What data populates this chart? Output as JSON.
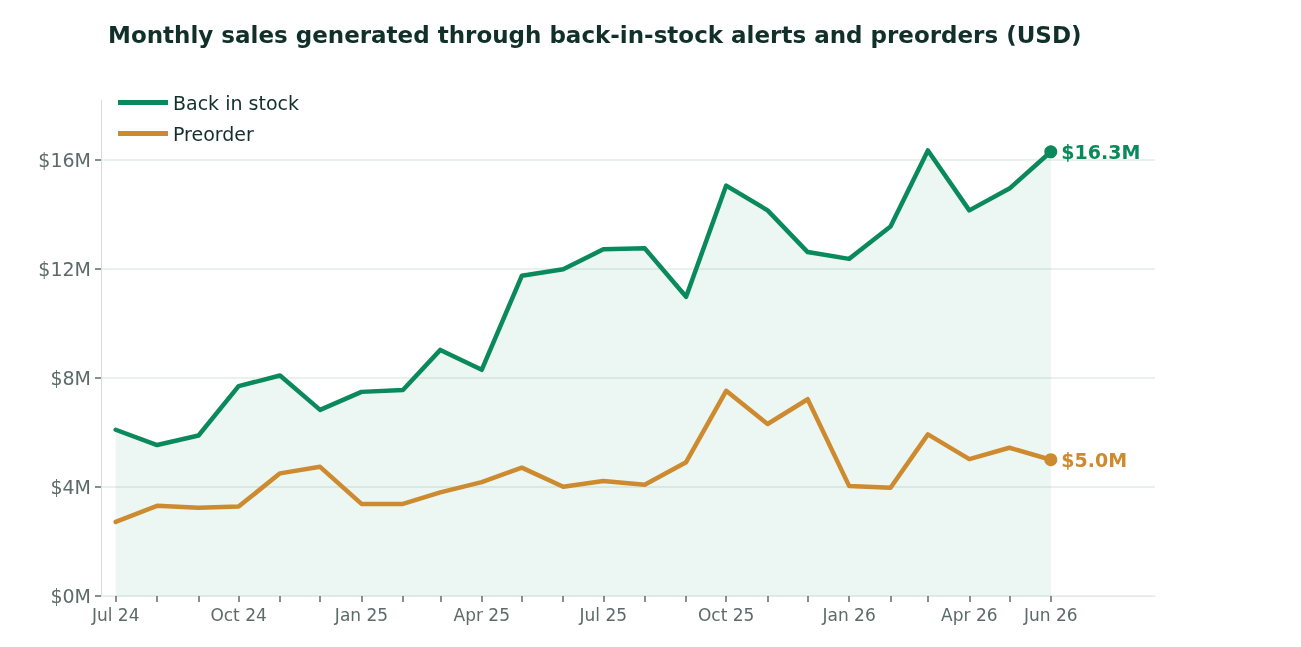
{
  "chart_data": {
    "type": "line",
    "title": "Monthly sales generated through back-in-stock alerts and preorders (USD)",
    "x": [
      "2024-07",
      "2024-08",
      "2024-09",
      "2024-10",
      "2024-11",
      "2024-12",
      "2025-01",
      "2025-02",
      "2025-03",
      "2025-04",
      "2025-05",
      "2025-06",
      "2025-07",
      "2025-08",
      "2025-09",
      "2025-10",
      "2025-11",
      "2025-12",
      "2026-01",
      "2026-02",
      "2026-03",
      "2026-04",
      "2026-05",
      "2026-06"
    ],
    "series": [
      {
        "name": "Back in stock",
        "type": "area",
        "color": "#0a8a5c",
        "values": [
          6.1,
          5.54,
          5.89,
          7.7,
          8.09,
          6.83,
          7.49,
          7.56,
          9.03,
          8.3,
          11.75,
          11.99,
          12.72,
          12.76,
          10.98,
          15.06,
          14.15,
          12.62,
          12.37,
          13.56,
          16.35,
          14.15,
          14.95,
          16.3
        ],
        "value_labels": [
          null,
          null,
          null,
          null,
          null,
          null,
          null,
          null,
          null,
          null,
          null,
          null,
          null,
          null,
          null,
          null,
          null,
          null,
          null,
          null,
          null,
          null,
          null,
          "$16.3M"
        ]
      },
      {
        "name": "Preorder",
        "color": "#cd8a2e",
        "values": [
          2.72,
          3.31,
          3.24,
          3.28,
          4.5,
          4.74,
          3.38,
          3.38,
          3.8,
          4.18,
          4.71,
          4.01,
          4.22,
          4.08,
          4.91,
          7.53,
          6.31,
          7.22,
          4.04,
          3.97,
          5.93,
          5.02,
          5.44,
          5.0
        ],
        "value_labels": [
          null,
          null,
          null,
          null,
          null,
          null,
          null,
          null,
          null,
          null,
          null,
          null,
          null,
          null,
          null,
          null,
          null,
          null,
          null,
          null,
          null,
          null,
          null,
          "$5.0M"
        ]
      }
    ],
    "ylim": [
      0,
      18.2
    ],
    "yticks": [
      {
        "value": 0,
        "label": "$0M"
      },
      {
        "value": 4,
        "label": "$4M"
      },
      {
        "value": 8,
        "label": "$8M"
      },
      {
        "value": 12,
        "label": "$12M"
      },
      {
        "value": 16,
        "label": "$16M"
      }
    ],
    "xlim": [
      "2024-06-20",
      "2026-08-18"
    ],
    "xticks": [
      {
        "value": "2024-07",
        "label": "Jul 24"
      },
      {
        "value": "2024-08",
        "label": null
      },
      {
        "value": "2024-09",
        "label": null
      },
      {
        "value": "2024-10",
        "label": "Oct 24"
      },
      {
        "value": "2024-11",
        "label": null
      },
      {
        "value": "2024-12",
        "label": null
      },
      {
        "value": "2025-01",
        "label": "Jan 25"
      },
      {
        "value": "2025-02",
        "label": null
      },
      {
        "value": "2025-03",
        "label": null
      },
      {
        "value": "2025-04",
        "label": "Apr 25"
      },
      {
        "value": "2025-05",
        "label": null
      },
      {
        "value": "2025-06",
        "label": null
      },
      {
        "value": "2025-07",
        "label": "Jul 25"
      },
      {
        "value": "2025-08",
        "label": null
      },
      {
        "value": "2025-09",
        "label": null
      },
      {
        "value": "2025-10",
        "label": "Oct 25"
      },
      {
        "value": "2025-11",
        "label": null
      },
      {
        "value": "2025-12",
        "label": null
      },
      {
        "value": "2026-01",
        "label": "Jan 26"
      },
      {
        "value": "2026-02",
        "label": null
      },
      {
        "value": "2026-03",
        "label": null
      },
      {
        "value": "2026-04",
        "label": "Apr 26"
      },
      {
        "value": "2026-05",
        "label": null
      },
      {
        "value": "2026-06",
        "label": "Jun 26"
      }
    ],
    "grid": "y",
    "legend": "top left",
    "line_style": "solid"
  }
}
